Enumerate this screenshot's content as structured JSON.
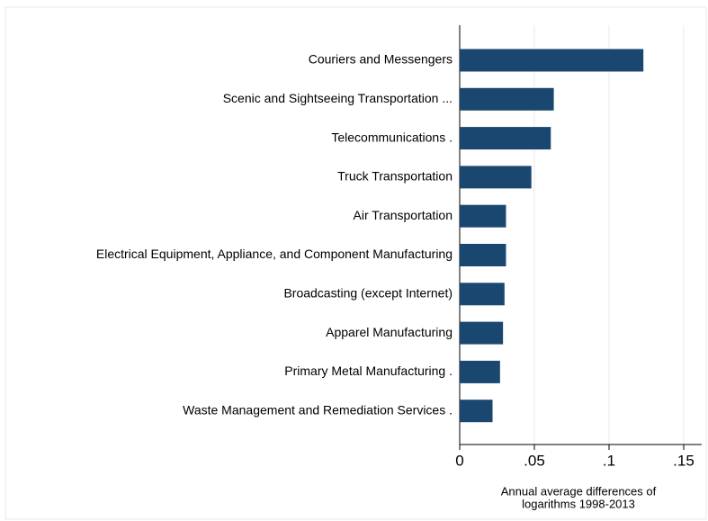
{
  "chart_data": {
    "type": "barh",
    "categories": [
      "Couriers and Messengers",
      "Scenic and Sightseeing Transportation ...",
      "Telecommunications .",
      "Truck Transportation",
      "Air Transportation",
      "Electrical Equipment, Appliance, and Component Manufacturing",
      "Broadcasting (except Internet)",
      "Apparel Manufacturing",
      "Primary Metal Manufacturing .",
      "Waste Management and Remediation Services ."
    ],
    "values": [
      0.123,
      0.063,
      0.061,
      0.048,
      0.031,
      0.031,
      0.03,
      0.029,
      0.027,
      0.022
    ],
    "color": "#1a476f",
    "xlim": [
      0,
      0.162
    ],
    "xticks": [
      0,
      {
        "value": 0.05,
        "label": ".05"
      },
      {
        "value": 0.1,
        "label": ".1"
      },
      {
        "value": 0.15,
        "label": ".15"
      }
    ],
    "xlabel": [
      "Annual average differences of",
      "logarithms 1998-2013"
    ],
    "grid": true
  }
}
